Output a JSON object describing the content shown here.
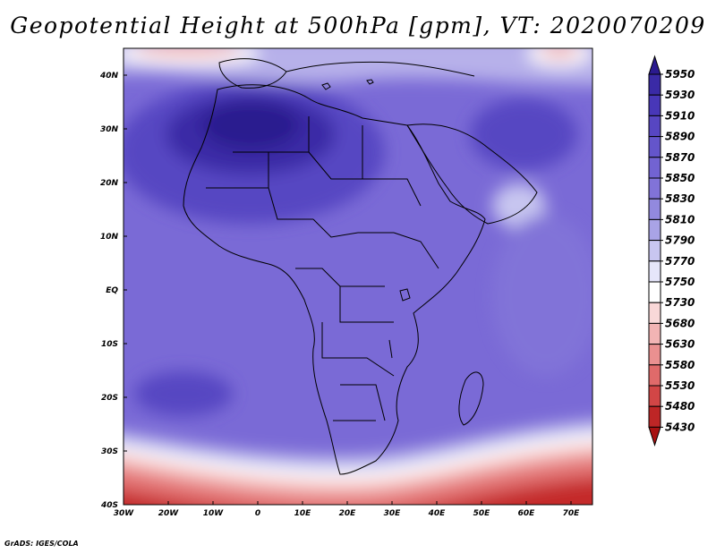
{
  "title": "Geopotential Height at 500hPa [gpm], VT: 2020070209",
  "credit": "GrADS: IGES/COLA",
  "map": {
    "lon_range": [
      -30,
      75
    ],
    "lat_range": [
      -40,
      45
    ],
    "lon_ticks": [
      "30W",
      "20W",
      "10W",
      "0",
      "10E",
      "20E",
      "30E",
      "40E",
      "50E",
      "60E",
      "70E"
    ],
    "lat_ticks": [
      "40N",
      "30N",
      "20N",
      "10N",
      "EQ",
      "10S",
      "20S",
      "30S",
      "40S"
    ]
  },
  "colorbar": {
    "levels": [
      "5950",
      "5930",
      "5910",
      "5890",
      "5870",
      "5850",
      "5830",
      "5810",
      "5790",
      "5770",
      "5750",
      "5730",
      "5680",
      "5630",
      "5580",
      "5530",
      "5480",
      "5430"
    ],
    "colors": [
      "#2b1a8f",
      "#3a2aa6",
      "#4837b8",
      "#5746c2",
      "#6455cb",
      "#7263d2",
      "#8173d8",
      "#9289de",
      "#a9a3e6",
      "#c8c6f0",
      "#e6e6fa",
      "#ffffff",
      "#f9d8d8",
      "#f2b4b4",
      "#ea9090",
      "#e06a6a",
      "#d24646",
      "#be2626",
      "#a81212"
    ]
  }
}
